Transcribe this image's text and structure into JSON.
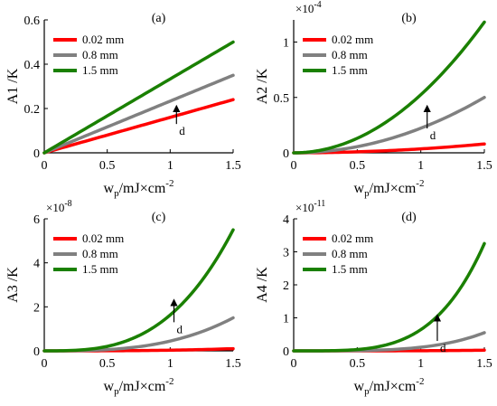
{
  "chart_data": [
    {
      "type": "line",
      "panel_label": "(a)",
      "ylabel": "A1 /K",
      "xlabel": {
        "base": "w",
        "sub": "p",
        "rest": "/mJ×cm",
        "sup": "-2"
      },
      "exponent": null,
      "xlim": [
        0,
        1.5
      ],
      "ylim": [
        0,
        0.6
      ],
      "xticks": [
        "0",
        "0.5",
        "1",
        "1.5"
      ],
      "yticks": [
        "0",
        "0.2",
        "0.4",
        "0.6"
      ],
      "ytick_values": [
        0,
        0.2,
        0.4,
        0.6
      ],
      "legend_position": "top-left",
      "series": [
        {
          "name": "0.02 mm",
          "color": "#ff0000",
          "power": 1,
          "y_end": 0.24
        },
        {
          "name": "0.8 mm",
          "color": "#808080",
          "power": 1,
          "y_end": 0.35
        },
        {
          "name": "1.5 mm",
          "color": "#1a8000",
          "power": 1,
          "y_end": 0.5
        }
      ],
      "arrow": {
        "label": "d",
        "x": 1.05,
        "y_from": 0.13,
        "y_to": 0.2
      }
    },
    {
      "type": "line",
      "panel_label": "(b)",
      "ylabel": "A2 /K",
      "xlabel": {
        "base": "w",
        "sub": "p",
        "rest": "/mJ×cm",
        "sup": "-2"
      },
      "exponent": {
        "base": "×10",
        "sup": "-4"
      },
      "xlim": [
        0,
        1.5
      ],
      "ylim": [
        0,
        1.2
      ],
      "xticks": [
        "0",
        "0.5",
        "1",
        "1.5"
      ],
      "yticks": [
        "0",
        "0.5",
        "1"
      ],
      "ytick_values": [
        0,
        0.5,
        1
      ],
      "legend_position": "top-left",
      "series": [
        {
          "name": "0.02 mm",
          "color": "#ff0000",
          "power": 2,
          "y_end": 0.08
        },
        {
          "name": "0.8 mm",
          "color": "#808080",
          "power": 2,
          "y_end": 0.5
        },
        {
          "name": "1.5 mm",
          "color": "#1a8000",
          "power": 2,
          "y_end": 1.18
        }
      ],
      "arrow": {
        "label": "d",
        "x": 1.05,
        "y_from": 0.22,
        "y_to": 0.4
      }
    },
    {
      "type": "line",
      "panel_label": "(c)",
      "ylabel": "A3 /K",
      "xlabel": {
        "base": "w",
        "sub": "p",
        "rest": "/mJ×cm",
        "sup": "-2"
      },
      "exponent": {
        "base": "×10",
        "sup": "-8"
      },
      "xlim": [
        0,
        1.5
      ],
      "ylim": [
        0,
        6
      ],
      "xticks": [
        "0",
        "0.5",
        "1",
        "1.5"
      ],
      "yticks": [
        "0",
        "2",
        "4",
        "6"
      ],
      "ytick_values": [
        0,
        2,
        4,
        6
      ],
      "legend_position": "top-left",
      "series": [
        {
          "name": "0.02 mm",
          "color": "#ff0000",
          "power": 3,
          "y_end": 0.1
        },
        {
          "name": "0.8 mm",
          "color": "#808080",
          "power": 3,
          "y_end": 1.5
        },
        {
          "name": "1.5 mm",
          "color": "#1a8000",
          "power": 3,
          "y_end": 5.5
        }
      ],
      "arrow": {
        "label": "d",
        "x": 1.03,
        "y_from": 1.3,
        "y_to": 2.2
      }
    },
    {
      "type": "line",
      "panel_label": "(d)",
      "ylabel": "A4 /K",
      "xlabel": {
        "base": "w",
        "sub": "p",
        "rest": "/mJ×cm",
        "sup": "-2"
      },
      "exponent": {
        "base": "×10",
        "sup": "-11"
      },
      "xlim": [
        0,
        1.5
      ],
      "ylim": [
        0,
        4
      ],
      "xticks": [
        "0",
        "0.5",
        "1",
        "1.5"
      ],
      "yticks": [
        "0",
        "1",
        "2",
        "3",
        "4"
      ],
      "ytick_values": [
        0,
        1,
        2,
        3,
        4
      ],
      "legend_position": "top-left",
      "series": [
        {
          "name": "0.02 mm",
          "color": "#ff0000",
          "power": 4,
          "y_end": 0.02
        },
        {
          "name": "0.8 mm",
          "color": "#808080",
          "power": 4,
          "y_end": 0.55
        },
        {
          "name": "1.5 mm",
          "color": "#1a8000",
          "power": 4,
          "y_end": 3.25
        }
      ],
      "arrow": {
        "label": "d",
        "x": 1.13,
        "y_from": 0.3,
        "y_to": 1.0
      }
    }
  ]
}
